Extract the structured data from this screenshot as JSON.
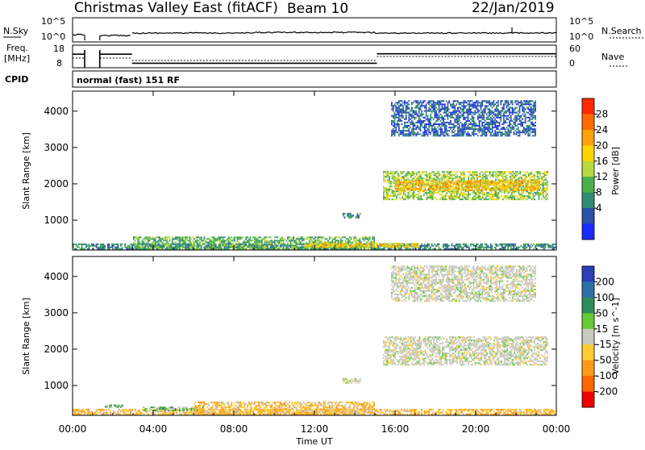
{
  "header": {
    "station": "Christmas Valley East (fitACF)",
    "beam": "Beam 10",
    "date": "22/Jan/2019"
  },
  "status_panels": {
    "nsky_label": "N.Sky",
    "nsearch_label": "N.Search",
    "nsky_ticks": [
      "10^5",
      "10^0"
    ],
    "nsearch_ticks": [
      "10^5",
      "10^0"
    ],
    "freq_label_line1": "Freq.",
    "freq_label_line2": "[MHz]",
    "freq_ticks": [
      "18",
      "8"
    ],
    "nave_label": "Nave",
    "nave_ticks": [
      "60",
      "0"
    ],
    "cpid_label": "CPID",
    "cpid_text": "normal (fast) 151 RF",
    "freq_steps_hours": [
      {
        "from": 0.0,
        "to": 0.6,
        "mhz": 14
      },
      {
        "from": 1.35,
        "to": 2.95,
        "mhz": 14
      },
      {
        "from": 2.95,
        "to": 15.1,
        "mhz": 10
      },
      {
        "from": 15.1,
        "to": 24.0,
        "mhz": 14.2
      }
    ],
    "gaps_hours": [
      [
        0.6,
        1.35
      ]
    ]
  },
  "x_axis": {
    "label": "Time UT",
    "ticks": [
      "00:00",
      "04:00",
      "08:00",
      "12:00",
      "16:00",
      "20:00",
      "00:00"
    ],
    "range_hours": [
      0,
      24
    ]
  },
  "power_panel": {
    "ylabel": "Slant Range [km]",
    "yticks": [
      "1000",
      "2000",
      "3000",
      "4000"
    ],
    "colorbar_label": "Power [dB]",
    "colorbar_ticks": [
      "4",
      "8",
      "12",
      "16",
      "20",
      "24",
      "28"
    ],
    "colorbar_colors": [
      "#1c2cff",
      "#2c4fa8",
      "#2f8c72",
      "#4ab04a",
      "#b7d93f",
      "#ffd400",
      "#ffa10a",
      "#ff6a00",
      "#ff2a00"
    ]
  },
  "velocity_panel": {
    "ylabel": "Slant Range [km]",
    "yticks": [
      "1000",
      "2000",
      "3000",
      "4000"
    ],
    "colorbar_label": "Velocity [m s^-1]",
    "colorbar_ticks": [
      "200",
      "100",
      "50",
      "15",
      "-15",
      "-50",
      "-100",
      "-200"
    ],
    "colorbar_colors": [
      "#2a3fb8",
      "#2f6fa8",
      "#2c8c5e",
      "#66c936",
      "#c9c9c0",
      "#ffcc33",
      "#ff9a1a",
      "#ff6600",
      "#ee0000"
    ]
  },
  "chart_data": [
    {
      "type": "heatmap",
      "name": "power",
      "x_units": "hours UT",
      "y_units": "km",
      "ylim": [
        180,
        4550
      ],
      "xlim": [
        0,
        24
      ],
      "zlim_db": [
        0,
        32
      ],
      "regions": [
        {
          "t0": 0.0,
          "t1": 24.0,
          "r0": 190,
          "r1": 360,
          "z": 9
        },
        {
          "t0": 3.0,
          "t1": 15.0,
          "r0": 190,
          "r1": 550,
          "z": 12
        },
        {
          "t0": 11.5,
          "t1": 17.2,
          "r0": 240,
          "r1": 380,
          "z": 20
        },
        {
          "t0": 13.4,
          "t1": 14.3,
          "r0": 1050,
          "r1": 1200,
          "z": 8
        },
        {
          "t0": 15.4,
          "t1": 23.6,
          "r0": 1550,
          "r1": 2350,
          "z": 15
        },
        {
          "t0": 16.0,
          "t1": 23.2,
          "r0": 1800,
          "r1": 2100,
          "z": 21
        },
        {
          "t0": 15.8,
          "t1": 23.0,
          "r0": 3300,
          "r1": 4300,
          "z": 6
        }
      ]
    },
    {
      "type": "heatmap",
      "name": "velocity",
      "x_units": "hours UT",
      "y_units": "km",
      "ylim": [
        180,
        4550
      ],
      "xlim": [
        0,
        24
      ],
      "zlim_ms": [
        -250,
        250
      ],
      "regions": [
        {
          "t0": 0.0,
          "t1": 24.0,
          "r0": 190,
          "r1": 360,
          "v": -30
        },
        {
          "t0": 1.6,
          "t1": 2.5,
          "r0": 410,
          "r1": 480,
          "v": 30
        },
        {
          "t0": 3.5,
          "t1": 6.5,
          "r0": 300,
          "r1": 420,
          "v": 25
        },
        {
          "t0": 6.0,
          "t1": 15.0,
          "r0": 190,
          "r1": 560,
          "v": -25
        },
        {
          "t0": 13.4,
          "t1": 14.3,
          "r0": 1050,
          "r1": 1200,
          "v": 0
        },
        {
          "t0": 15.4,
          "t1": 23.6,
          "r0": 1550,
          "r1": 2350,
          "v": 0
        },
        {
          "t0": 15.8,
          "t1": 23.0,
          "r0": 3300,
          "r1": 4300,
          "v": 0
        }
      ]
    }
  ]
}
